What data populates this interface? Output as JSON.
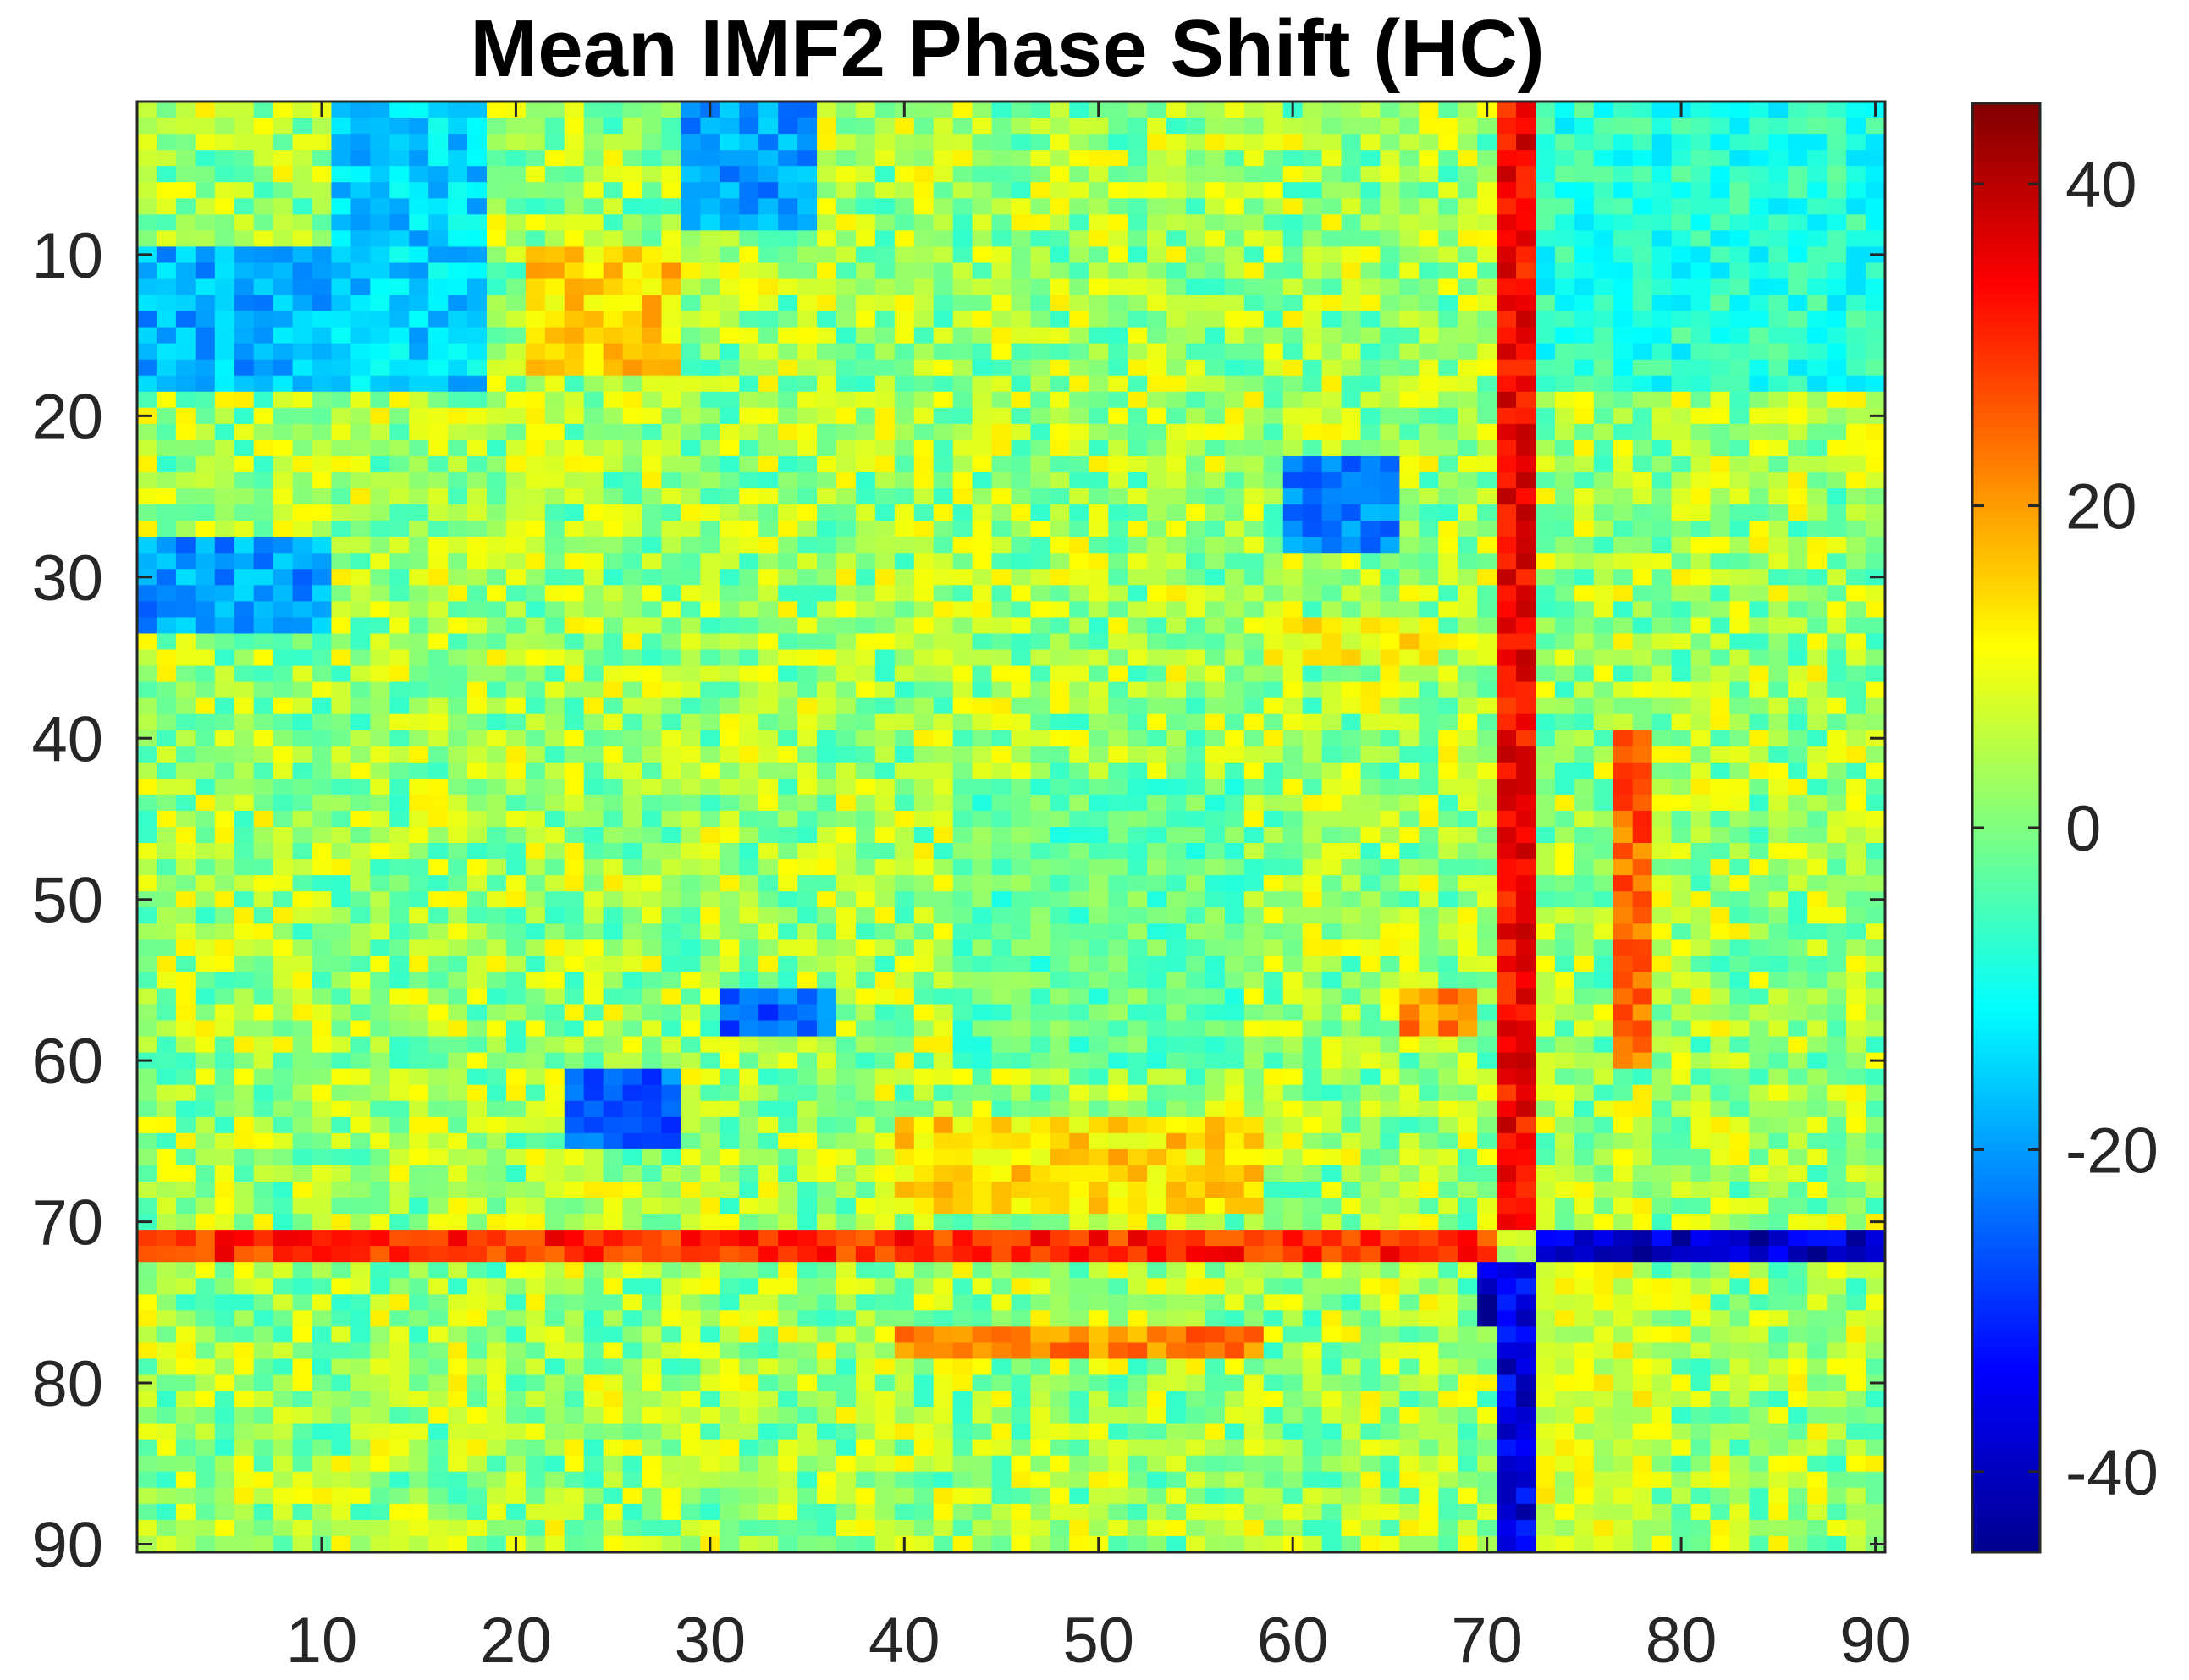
{
  "chart_data": {
    "type": "heatmap",
    "title": "Mean IMF2 Phase Shift (HC)",
    "xlabel": "",
    "ylabel": "",
    "n_rows": 90,
    "n_cols": 90,
    "xlim": [
      0.5,
      90.5
    ],
    "ylim": [
      0.5,
      90.5
    ],
    "x_ticks": [
      10,
      20,
      30,
      40,
      50,
      60,
      70,
      80,
      90
    ],
    "y_ticks": [
      10,
      20,
      30,
      40,
      50,
      60,
      70,
      80,
      90
    ],
    "x_tick_labels": [
      "10",
      "20",
      "30",
      "40",
      "50",
      "60",
      "70",
      "80",
      "90"
    ],
    "y_tick_labels": [
      "10",
      "20",
      "30",
      "40",
      "50",
      "60",
      "70",
      "80",
      "90"
    ],
    "colormap": "jet",
    "clim": [
      -45,
      45
    ],
    "colorbar_ticks": [
      40,
      20,
      0,
      -20,
      -40
    ],
    "colorbar_tick_labels": [
      "40",
      "20",
      "0",
      "-20",
      "-40"
    ],
    "colorbar_position": "right",
    "grid": false,
    "values_note_rows": "values in degrees-like units, rows 1..90 top to bottom",
    "structure": {
      "baseline": 3,
      "noise_amplitude": 10,
      "row_bands": [
        {
          "rows": [
            71,
            72
          ],
          "cols": [
            1,
            70
          ],
          "value": 30
        },
        {
          "rows": [
            71,
            72
          ],
          "cols": [
            73,
            90
          ],
          "value": -38
        },
        {
          "rows": [
            73,
            76
          ],
          "cols": [
            70,
            72
          ],
          "value": -38
        },
        {
          "rows": [
            77,
            78
          ],
          "cols": [
            40,
            58
          ],
          "value": 22
        },
        {
          "rows": [
            33,
            35
          ],
          "cols": [
            59,
            67
          ],
          "value": 12
        }
      ],
      "col_bands": [
        {
          "cols": [
            71,
            72
          ],
          "rows": [
            1,
            70
          ],
          "value": 34
        },
        {
          "cols": [
            71,
            72
          ],
          "rows": [
            73,
            90
          ],
          "value": -36
        },
        {
          "cols": [
            77,
            78
          ],
          "rows": [
            40,
            60
          ],
          "value": 25
        }
      ],
      "blocks": [
        {
          "rows": [
            1,
            18
          ],
          "cols": [
            11,
            18
          ],
          "value": -15
        },
        {
          "rows": [
            10,
            18
          ],
          "cols": [
            1,
            10
          ],
          "value": -18
        },
        {
          "rows": [
            28,
            33
          ],
          "cols": [
            1,
            10
          ],
          "value": -20
        },
        {
          "rows": [
            1,
            8
          ],
          "cols": [
            29,
            35
          ],
          "value": -20
        },
        {
          "rows": [
            61,
            65
          ],
          "cols": [
            23,
            28
          ],
          "value": -25
        },
        {
          "rows": [
            23,
            28
          ],
          "cols": [
            60,
            65
          ],
          "value": -22
        },
        {
          "rows": [
            73,
            90
          ],
          "cols": [
            73,
            78
          ],
          "value": 8
        },
        {
          "rows": [
            1,
            18
          ],
          "cols": [
            73,
            90
          ],
          "value": -8
        },
        {
          "rows": [
            10,
            17
          ],
          "cols": [
            21,
            28
          ],
          "value": 15
        },
        {
          "rows": [
            56,
            58
          ],
          "cols": [
            66,
            69
          ],
          "value": 22
        },
        {
          "rows": [
            64,
            69
          ],
          "cols": [
            40,
            58
          ],
          "value": 14
        },
        {
          "rows": [
            43,
            60
          ],
          "cols": [
            43,
            57
          ],
          "value": -3
        },
        {
          "rows": [
            56,
            58
          ],
          "cols": [
            31,
            36
          ],
          "value": -25
        }
      ]
    }
  }
}
